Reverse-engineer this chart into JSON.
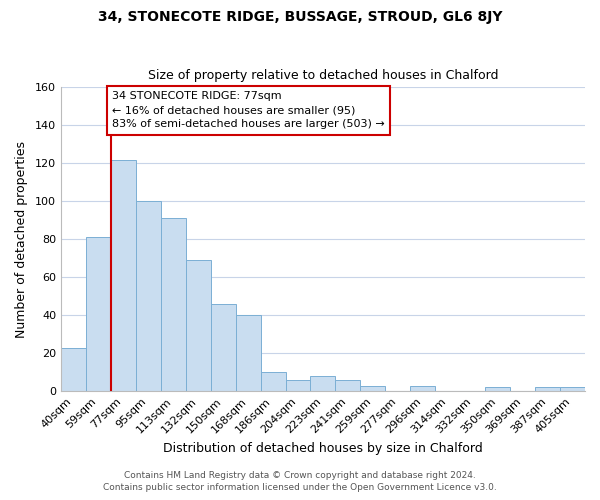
{
  "title": "34, STONECOTE RIDGE, BUSSAGE, STROUD, GL6 8JY",
  "subtitle": "Size of property relative to detached houses in Chalford",
  "xlabel": "Distribution of detached houses by size in Chalford",
  "ylabel": "Number of detached properties",
  "bin_labels": [
    "40sqm",
    "59sqm",
    "77sqm",
    "95sqm",
    "113sqm",
    "132sqm",
    "150sqm",
    "168sqm",
    "186sqm",
    "204sqm",
    "223sqm",
    "241sqm",
    "259sqm",
    "277sqm",
    "296sqm",
    "314sqm",
    "332sqm",
    "350sqm",
    "369sqm",
    "387sqm",
    "405sqm"
  ],
  "bar_heights": [
    23,
    81,
    122,
    100,
    91,
    69,
    46,
    40,
    10,
    6,
    8,
    6,
    3,
    0,
    3,
    0,
    0,
    2,
    0,
    2,
    2
  ],
  "vline_index": 2,
  "bar_color": "#c9ddf0",
  "bar_edge_color": "#7bafd4",
  "vline_color": "#cc0000",
  "annotation_title": "34 STONECOTE RIDGE: 77sqm",
  "annotation_line1": "← 16% of detached houses are smaller (95)",
  "annotation_line2": "83% of semi-detached houses are larger (503) →",
  "annotation_box_color": "#ffffff",
  "annotation_box_edgecolor": "#cc0000",
  "ylim": [
    0,
    160
  ],
  "yticks": [
    0,
    20,
    40,
    60,
    80,
    100,
    120,
    140,
    160
  ],
  "footer_line1": "Contains HM Land Registry data © Crown copyright and database right 2024.",
  "footer_line2": "Contains public sector information licensed under the Open Government Licence v3.0.",
  "background_color": "#ffffff",
  "grid_color": "#c8d4e8",
  "title_fontsize": 10,
  "subtitle_fontsize": 9,
  "xlabel_fontsize": 9,
  "ylabel_fontsize": 9,
  "tick_fontsize": 8,
  "ann_fontsize": 8,
  "footer_fontsize": 6.5
}
